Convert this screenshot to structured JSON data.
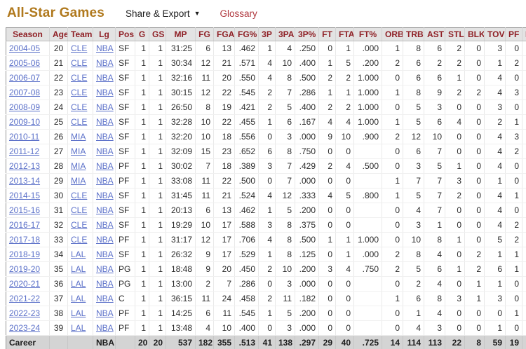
{
  "page": {
    "title": "All-Star Games",
    "share_export": "Share & Export",
    "share_caret": "▼",
    "glossary": "Glossary"
  },
  "colors": {
    "title": "#b0791d",
    "glossary": "#b0383e",
    "header_text": "#8f2026",
    "link": "#5c71c9",
    "header_bg": "#e3e3e3",
    "career_bg": "#d4d4d4"
  },
  "table": {
    "columns": [
      "Season",
      "Age",
      "Team",
      "Lg",
      "Pos",
      "G",
      "GS",
      "MP",
      "FG",
      "FGA",
      "FG%",
      "3P",
      "3PA",
      "3P%",
      "FT",
      "FTA",
      "FT%",
      "ORB",
      "TRB",
      "AST",
      "STL",
      "BLK",
      "TOV",
      "PF",
      "PTS"
    ],
    "rows": [
      [
        "2004-05",
        "20",
        "CLE",
        "NBA",
        "SF",
        "1",
        "1",
        "31:25",
        "6",
        "13",
        ".462",
        "1",
        "4",
        ".250",
        "0",
        "1",
        ".000",
        "1",
        "8",
        "6",
        "2",
        "0",
        "3",
        "0",
        "13"
      ],
      [
        "2005-06",
        "21",
        "CLE",
        "NBA",
        "SF",
        "1",
        "1",
        "30:34",
        "12",
        "21",
        ".571",
        "4",
        "10",
        ".400",
        "1",
        "5",
        ".200",
        "2",
        "6",
        "2",
        "2",
        "0",
        "1",
        "2",
        "29"
      ],
      [
        "2006-07",
        "22",
        "CLE",
        "NBA",
        "SF",
        "1",
        "1",
        "32:16",
        "11",
        "20",
        ".550",
        "4",
        "8",
        ".500",
        "2",
        "2",
        "1.000",
        "0",
        "6",
        "6",
        "1",
        "0",
        "4",
        "0",
        "28"
      ],
      [
        "2007-08",
        "23",
        "CLE",
        "NBA",
        "SF",
        "1",
        "1",
        "30:15",
        "12",
        "22",
        ".545",
        "2",
        "7",
        ".286",
        "1",
        "1",
        "1.000",
        "1",
        "8",
        "9",
        "2",
        "2",
        "4",
        "3",
        "27"
      ],
      [
        "2008-09",
        "24",
        "CLE",
        "NBA",
        "SF",
        "1",
        "1",
        "26:50",
        "8",
        "19",
        ".421",
        "2",
        "5",
        ".400",
        "2",
        "2",
        "1.000",
        "0",
        "5",
        "3",
        "0",
        "0",
        "3",
        "0",
        "20"
      ],
      [
        "2009-10",
        "25",
        "CLE",
        "NBA",
        "SF",
        "1",
        "1",
        "32:28",
        "10",
        "22",
        ".455",
        "1",
        "6",
        ".167",
        "4",
        "4",
        "1.000",
        "1",
        "5",
        "6",
        "4",
        "0",
        "2",
        "1",
        "25"
      ],
      [
        "2010-11",
        "26",
        "MIA",
        "NBA",
        "SF",
        "1",
        "1",
        "32:20",
        "10",
        "18",
        ".556",
        "0",
        "3",
        ".000",
        "9",
        "10",
        ".900",
        "2",
        "12",
        "10",
        "0",
        "0",
        "4",
        "3",
        "29"
      ],
      [
        "2011-12",
        "27",
        "MIA",
        "NBA",
        "SF",
        "1",
        "1",
        "32:09",
        "15",
        "23",
        ".652",
        "6",
        "8",
        ".750",
        "0",
        "0",
        "",
        "0",
        "6",
        "7",
        "0",
        "0",
        "4",
        "2",
        "36"
      ],
      [
        "2012-13",
        "28",
        "MIA",
        "NBA",
        "PF",
        "1",
        "1",
        "30:02",
        "7",
        "18",
        ".389",
        "3",
        "7",
        ".429",
        "2",
        "4",
        ".500",
        "0",
        "3",
        "5",
        "1",
        "0",
        "4",
        "0",
        "19"
      ],
      [
        "2013-14",
        "29",
        "MIA",
        "NBA",
        "PF",
        "1",
        "1",
        "33:08",
        "11",
        "22",
        ".500",
        "0",
        "7",
        ".000",
        "0",
        "0",
        "",
        "1",
        "7",
        "7",
        "3",
        "0",
        "1",
        "0",
        "22"
      ],
      [
        "2014-15",
        "30",
        "CLE",
        "NBA",
        "SF",
        "1",
        "1",
        "31:45",
        "11",
        "21",
        ".524",
        "4",
        "12",
        ".333",
        "4",
        "5",
        ".800",
        "1",
        "5",
        "7",
        "2",
        "0",
        "4",
        "1",
        "30"
      ],
      [
        "2015-16",
        "31",
        "CLE",
        "NBA",
        "SF",
        "1",
        "1",
        "20:13",
        "6",
        "13",
        ".462",
        "1",
        "5",
        ".200",
        "0",
        "0",
        "",
        "0",
        "4",
        "7",
        "0",
        "0",
        "4",
        "0",
        "13"
      ],
      [
        "2016-17",
        "32",
        "CLE",
        "NBA",
        "SF",
        "1",
        "1",
        "19:29",
        "10",
        "17",
        ".588",
        "3",
        "8",
        ".375",
        "0",
        "0",
        "",
        "0",
        "3",
        "1",
        "0",
        "0",
        "4",
        "2",
        "23"
      ],
      [
        "2017-18",
        "33",
        "CLE",
        "NBA",
        "PF",
        "1",
        "1",
        "31:17",
        "12",
        "17",
        ".706",
        "4",
        "8",
        ".500",
        "1",
        "1",
        "1.000",
        "0",
        "10",
        "8",
        "1",
        "0",
        "5",
        "2",
        "29"
      ],
      [
        "2018-19",
        "34",
        "LAL",
        "NBA",
        "SF",
        "1",
        "1",
        "26:32",
        "9",
        "17",
        ".529",
        "1",
        "8",
        ".125",
        "0",
        "1",
        ".000",
        "2",
        "8",
        "4",
        "0",
        "2",
        "1",
        "1",
        "19"
      ],
      [
        "2019-20",
        "35",
        "LAL",
        "NBA",
        "PG",
        "1",
        "1",
        "18:48",
        "9",
        "20",
        ".450",
        "2",
        "10",
        ".200",
        "3",
        "4",
        ".750",
        "2",
        "5",
        "6",
        "1",
        "2",
        "6",
        "1",
        "23"
      ],
      [
        "2020-21",
        "36",
        "LAL",
        "NBA",
        "PG",
        "1",
        "1",
        "13:00",
        "2",
        "7",
        ".286",
        "0",
        "3",
        ".000",
        "0",
        "0",
        "",
        "0",
        "2",
        "4",
        "0",
        "1",
        "1",
        "0",
        "4"
      ],
      [
        "2021-22",
        "37",
        "LAL",
        "NBA",
        "C",
        "1",
        "1",
        "36:15",
        "11",
        "24",
        ".458",
        "2",
        "11",
        ".182",
        "0",
        "0",
        "",
        "1",
        "6",
        "8",
        "3",
        "1",
        "3",
        "0",
        "24"
      ],
      [
        "2022-23",
        "38",
        "LAL",
        "NBA",
        "PF",
        "1",
        "1",
        "14:25",
        "6",
        "11",
        ".545",
        "1",
        "5",
        ".200",
        "0",
        "0",
        "",
        "0",
        "1",
        "4",
        "0",
        "0",
        "0",
        "1",
        "13"
      ],
      [
        "2023-24",
        "39",
        "LAL",
        "NBA",
        "PF",
        "1",
        "1",
        "13:48",
        "4",
        "10",
        ".400",
        "0",
        "3",
        ".000",
        "0",
        "0",
        "",
        "0",
        "4",
        "3",
        "0",
        "0",
        "1",
        "0",
        "8"
      ]
    ],
    "career": [
      "Career",
      "",
      "",
      "NBA",
      "",
      "20",
      "20",
      "537",
      "182",
      "355",
      ".513",
      "41",
      "138",
      ".297",
      "29",
      "40",
      ".725",
      "14",
      "114",
      "113",
      "22",
      "8",
      "59",
      "19",
      "434"
    ]
  }
}
